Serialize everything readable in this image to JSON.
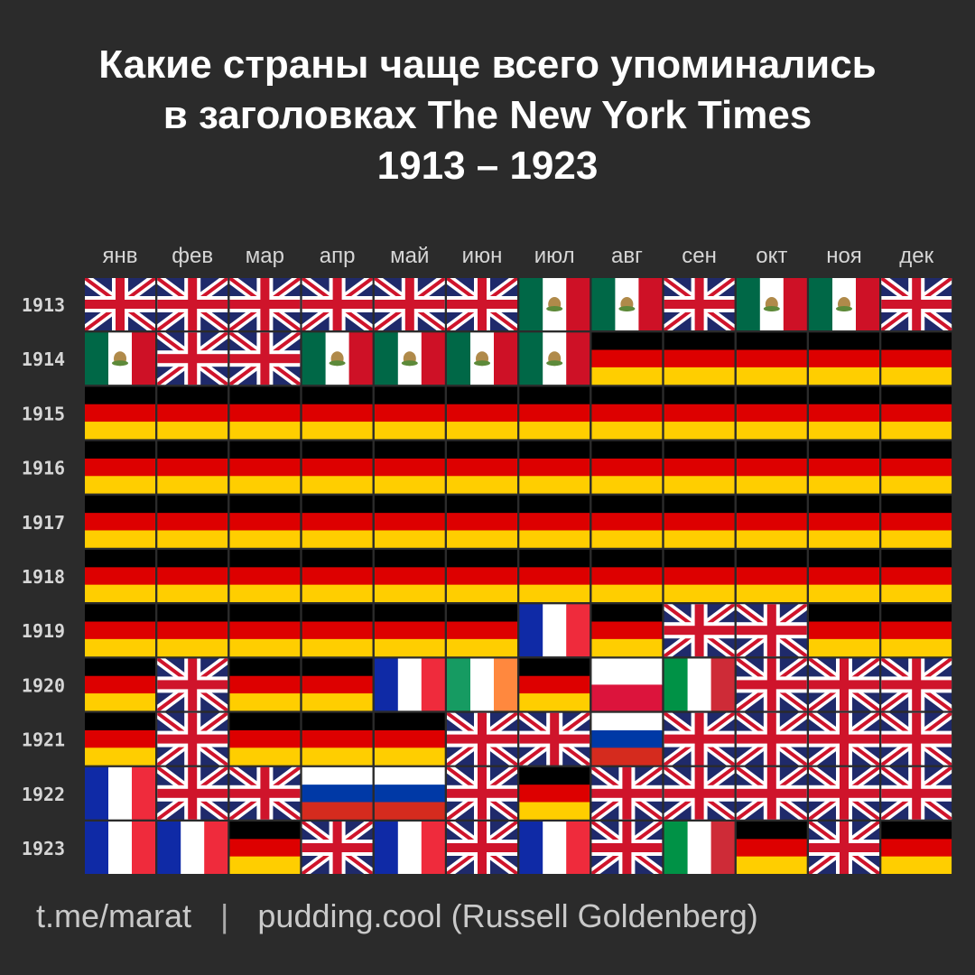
{
  "title_lines": [
    "Какие страны чаще всего упоминались",
    "в заголовках The New York Times",
    "1913 – 1923"
  ],
  "footer": {
    "left": "t.me/marat",
    "separator": "|",
    "right": "pudding.cool (Russell Goldenberg)"
  },
  "colors": {
    "background": "#2b2b2b",
    "uk_blue": "#1f2a6b",
    "uk_red": "#cf142b",
    "de_black": "#000000",
    "de_red": "#dd0000",
    "de_gold": "#ffce00",
    "fr_blue": "#0f2aa6",
    "fr_red": "#ef2b3c",
    "mx_green": "#006847",
    "mx_red": "#ce1126",
    "ie_green": "#169b62",
    "ie_orange": "#ff883e",
    "it_green": "#009246",
    "it_red": "#ce2b37",
    "pl_red": "#dc143c",
    "ru_blue": "#0039a6",
    "ru_red": "#d52b1e"
  },
  "chart_data": {
    "type": "heatmap",
    "title": "Какие страны чаще всего упоминались в заголовках The New York Times 1913 – 1923",
    "months": [
      "янв",
      "фев",
      "мар",
      "апр",
      "май",
      "июн",
      "июл",
      "авг",
      "сен",
      "окт",
      "ноя",
      "дек"
    ],
    "years": [
      "1913",
      "1914",
      "1915",
      "1916",
      "1917",
      "1918",
      "1919",
      "1920",
      "1921",
      "1922",
      "1923"
    ],
    "values": [
      [
        "uk",
        "uk",
        "uk",
        "uk",
        "uk",
        "uk",
        "mexico",
        "mexico",
        "uk",
        "mexico",
        "mexico",
        "uk"
      ],
      [
        "mexico",
        "uk",
        "uk",
        "mexico",
        "mexico",
        "mexico",
        "mexico",
        "germany",
        "germany",
        "germany",
        "germany",
        "germany"
      ],
      [
        "germany",
        "germany",
        "germany",
        "germany",
        "germany",
        "germany",
        "germany",
        "germany",
        "germany",
        "germany",
        "germany",
        "germany"
      ],
      [
        "germany",
        "germany",
        "germany",
        "germany",
        "germany",
        "germany",
        "germany",
        "germany",
        "germany",
        "germany",
        "germany",
        "germany"
      ],
      [
        "germany",
        "germany",
        "germany",
        "germany",
        "germany",
        "germany",
        "germany",
        "germany",
        "germany",
        "germany",
        "germany",
        "germany"
      ],
      [
        "germany",
        "germany",
        "germany",
        "germany",
        "germany",
        "germany",
        "germany",
        "germany",
        "germany",
        "germany",
        "germany",
        "germany"
      ],
      [
        "germany",
        "germany",
        "germany",
        "germany",
        "germany",
        "germany",
        "france",
        "germany",
        "uk",
        "uk",
        "germany",
        "germany"
      ],
      [
        "germany",
        "uk",
        "germany",
        "germany",
        "france",
        "ireland",
        "germany",
        "poland",
        "italy",
        "uk",
        "uk",
        "uk"
      ],
      [
        "germany",
        "uk",
        "germany",
        "germany",
        "germany",
        "uk",
        "uk",
        "russia",
        "uk",
        "uk",
        "uk",
        "uk"
      ],
      [
        "france",
        "uk",
        "uk",
        "russia",
        "russia",
        "uk",
        "germany",
        "uk",
        "uk",
        "uk",
        "uk",
        "uk"
      ],
      [
        "france",
        "france",
        "germany",
        "uk",
        "france",
        "uk",
        "france",
        "uk",
        "italy",
        "germany",
        "uk",
        "germany"
      ]
    ]
  }
}
